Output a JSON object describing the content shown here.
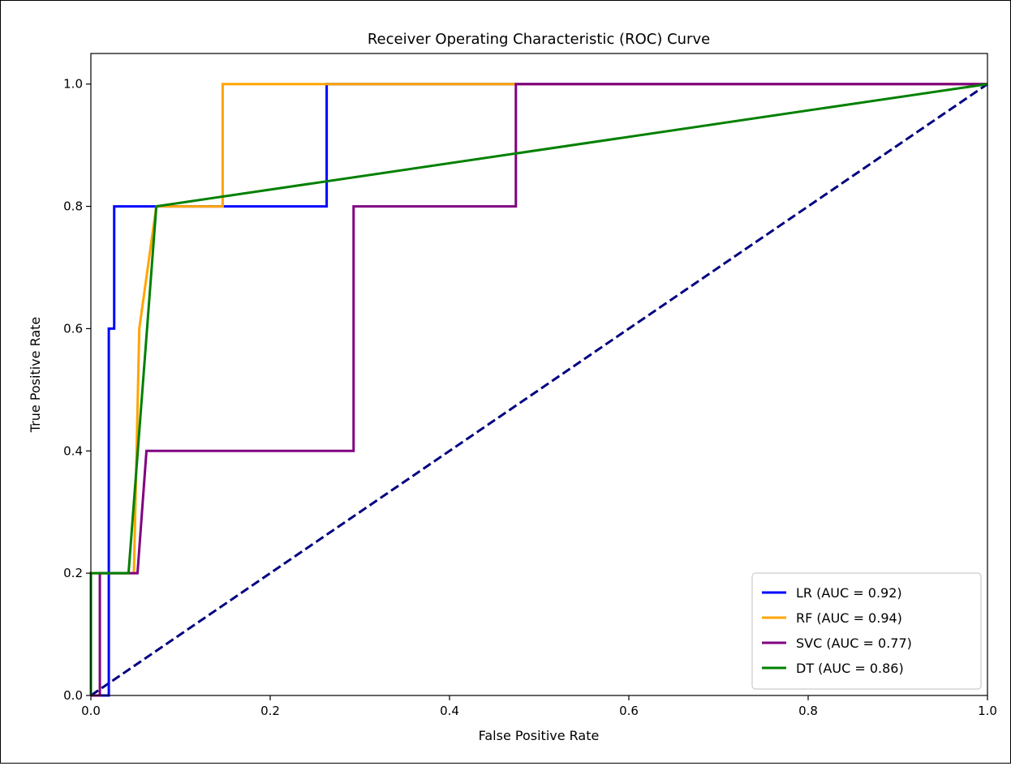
{
  "chart_data": {
    "type": "line",
    "title": "Receiver Operating Characteristic (ROC) Curve",
    "xlabel": "False Positive Rate",
    "ylabel": "True Positive Rate",
    "xlim": [
      0.0,
      1.0
    ],
    "ylim": [
      0.0,
      1.05
    ],
    "xticks": [
      0.0,
      0.2,
      0.4,
      0.6,
      0.8,
      1.0
    ],
    "yticks": [
      0.0,
      0.2,
      0.4,
      0.6,
      0.8,
      1.0
    ],
    "xtick_labels": [
      "0.0",
      "0.2",
      "0.4",
      "0.6",
      "0.8",
      "1.0"
    ],
    "ytick_labels": [
      "0.0",
      "0.2",
      "0.4",
      "0.6",
      "0.8",
      "1.0"
    ],
    "grid": false,
    "legend_position": "lower-right",
    "series": [
      {
        "name": "LR (AUC = 0.92)",
        "color": "#0000ff",
        "x": [
          0.0,
          0.02,
          0.02,
          0.026,
          0.026,
          0.263,
          0.263,
          1.0
        ],
        "y": [
          0.0,
          0.0,
          0.6,
          0.6,
          0.8,
          0.8,
          1.0,
          1.0
        ]
      },
      {
        "name": "RF (AUC = 0.94)",
        "color": "#ffa500",
        "x": [
          0.0,
          0.0,
          0.048,
          0.054,
          0.054,
          0.073,
          0.073,
          0.147,
          0.147,
          1.0
        ],
        "y": [
          0.0,
          0.2,
          0.2,
          0.6,
          0.6,
          0.8,
          0.8,
          0.8,
          1.0,
          1.0
        ]
      },
      {
        "name": "SVC (AUC = 0.77)",
        "color": "#800080",
        "x": [
          0.0,
          0.01,
          0.01,
          0.052,
          0.062,
          0.293,
          0.293,
          0.474,
          0.474,
          1.0
        ],
        "y": [
          0.0,
          0.0,
          0.2,
          0.2,
          0.4,
          0.4,
          0.8,
          0.8,
          1.0,
          1.0
        ]
      },
      {
        "name": "DT (AUC = 0.86)",
        "color": "#008000",
        "x": [
          0.0,
          0.0,
          0.042,
          0.073,
          1.0
        ],
        "y": [
          0.0,
          0.2,
          0.2,
          0.8,
          1.0
        ]
      }
    ],
    "reference_line": {
      "color": "#000080",
      "style": "dashed",
      "x": [
        0.0,
        1.0
      ],
      "y": [
        0.0,
        1.0
      ]
    }
  }
}
